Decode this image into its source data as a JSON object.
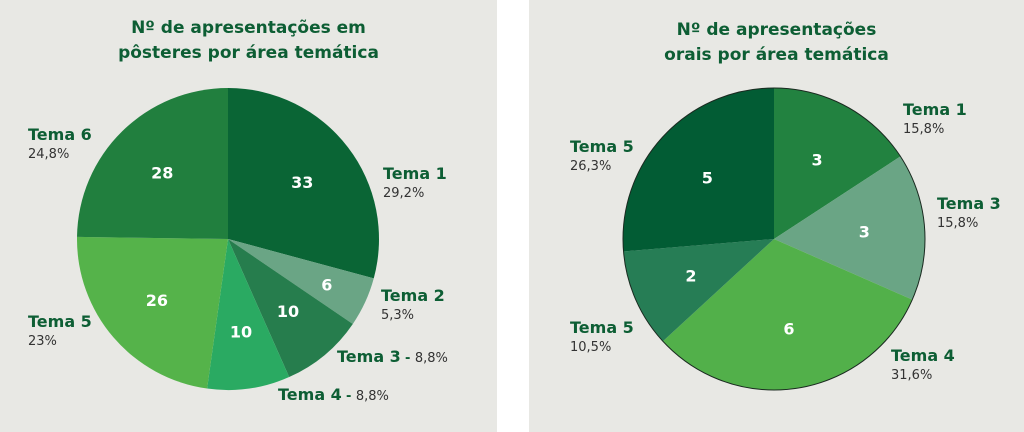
{
  "chart_data": [
    {
      "type": "pie",
      "title_lines": [
        "Nº de apresentações em",
        "pôsteres por área temática"
      ],
      "slices": [
        {
          "label": "Tema 1",
          "value": 33,
          "percent": "29,2%",
          "color": "#0a6535",
          "text_color": "#ffffff"
        },
        {
          "label": "Tema 2",
          "value": 6,
          "percent": "5,3%",
          "color": "#6aa585",
          "text_color": "#ffffff"
        },
        {
          "label": "Tema 3",
          "value": 10,
          "percent": "8,8%",
          "color": "#267d4d",
          "text_color": "#ffffff"
        },
        {
          "label": "Tema 4",
          "value": 10,
          "percent": "8,8%",
          "color": "#2aaa62",
          "text_color": "#ffffff"
        },
        {
          "label": "Tema 5",
          "value": 26,
          "percent": "23%",
          "color": "#55b34a",
          "text_color": "#ffffff"
        },
        {
          "label": "Tema 6",
          "value": 28,
          "percent": "24,8%",
          "color": "#217f3e",
          "text_color": "#ffffff"
        }
      ]
    },
    {
      "type": "pie",
      "title_lines": [
        "Nº de apresentações",
        "orais por área temática"
      ],
      "slices": [
        {
          "label": "Tema 1",
          "value": 3,
          "percent": "15,8%",
          "color": "#228240",
          "text_color": "#ffffff"
        },
        {
          "label": "Tema 3",
          "value": 3,
          "percent": "15,8%",
          "color": "#6aa585",
          "text_color": "#ffffff"
        },
        {
          "label": "Tema 4",
          "value": 6,
          "percent": "31,6%",
          "color": "#52b04a",
          "text_color": "#ffffff"
        },
        {
          "label": "Tema 5",
          "value": 2,
          "percent": "10,5%",
          "color": "#267d55",
          "text_color": "#ffffff"
        },
        {
          "label": "Tema 5",
          "value": 5,
          "percent": "26,3%",
          "color": "#025c34",
          "text_color": "#ffffff"
        }
      ]
    }
  ]
}
